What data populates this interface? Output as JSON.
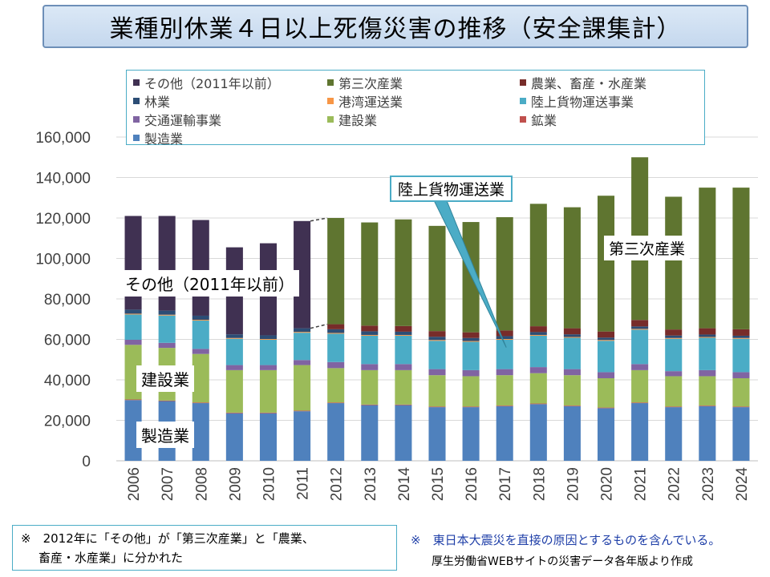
{
  "title": "業種別休業４日以上死傷災害の推移（安全課集計）",
  "chart_data": {
    "type": "bar",
    "stacked": true,
    "title": "業種別休業４日以上死傷災害の推移（安全課集計）",
    "xlabel": "",
    "ylabel": "",
    "ylim": [
      0,
      160000
    ],
    "yticks": [
      0,
      20000,
      40000,
      60000,
      80000,
      100000,
      120000,
      140000,
      160000
    ],
    "ytick_labels": [
      "0",
      "20,000",
      "40,000",
      "60,000",
      "80,000",
      "100,000",
      "120,000",
      "140,000",
      "160,000"
    ],
    "grid": true,
    "legend_position": "top",
    "categories": [
      "2006",
      "2007",
      "2008",
      "2009",
      "2010",
      "2011",
      "2012",
      "2013",
      "2014",
      "2015",
      "2016",
      "2017",
      "2018",
      "2019",
      "2020",
      "2021",
      "2022",
      "2023",
      "2024"
    ],
    "series": [
      {
        "name": "製造業",
        "color": "#4f81bd",
        "values": [
          30000,
          29500,
          28500,
          23500,
          23500,
          24500,
          28500,
          27500,
          27500,
          26500,
          26500,
          27000,
          28000,
          27000,
          26000,
          28500,
          26500,
          27000,
          26500
        ]
      },
      {
        "name": "鉱業",
        "color": "#c0504d",
        "values": [
          300,
          300,
          300,
          300,
          300,
          300,
          300,
          300,
          300,
          300,
          300,
          300,
          300,
          300,
          300,
          300,
          300,
          300,
          300
        ]
      },
      {
        "name": "建設業",
        "color": "#9bbb59",
        "values": [
          27000,
          26000,
          24000,
          21000,
          21000,
          22500,
          17000,
          17000,
          17000,
          15500,
          15000,
          15000,
          15000,
          15000,
          14500,
          16000,
          15000,
          14500,
          14000
        ]
      },
      {
        "name": "交通運輸事業",
        "color": "#8064a2",
        "values": [
          2500,
          2500,
          2500,
          2500,
          2500,
          2500,
          3000,
          3000,
          3000,
          3000,
          3000,
          3000,
          3000,
          3000,
          3000,
          3000,
          2500,
          3000,
          3000
        ]
      },
      {
        "name": "陸上貨物運送事業",
        "color": "#4bacc6",
        "values": [
          12500,
          13500,
          14000,
          13000,
          12500,
          13500,
          14000,
          14000,
          14000,
          14000,
          14000,
          14500,
          15500,
          15500,
          15500,
          17000,
          16000,
          16000,
          16500
        ]
      },
      {
        "name": "港湾運送業",
        "color": "#f79646",
        "values": [
          400,
          400,
          400,
          400,
          400,
          400,
          400,
          400,
          400,
          400,
          400,
          400,
          400,
          400,
          400,
          400,
          400,
          400,
          400
        ]
      },
      {
        "name": "林業",
        "color": "#2c4d75",
        "values": [
          2000,
          2000,
          2000,
          1800,
          1800,
          1800,
          1800,
          1800,
          1600,
          1600,
          1500,
          1400,
          1400,
          1300,
          1200,
          1200,
          1200,
          1200,
          1100
        ]
      },
      {
        "name": "農業、畜産・水産業",
        "color": "#772c2a",
        "values": [
          0,
          0,
          0,
          0,
          0,
          0,
          2500,
          2800,
          2800,
          2800,
          2800,
          2800,
          2900,
          3000,
          3000,
          3200,
          3000,
          3100,
          3200
        ]
      },
      {
        "name": "第三次産業",
        "color": "#5f7530",
        "values": [
          0,
          0,
          0,
          0,
          0,
          0,
          52500,
          51000,
          52700,
          52000,
          54500,
          56000,
          60500,
          59800,
          67100,
          80400,
          65600,
          69500,
          70000
        ]
      },
      {
        "name": "その他（2011年以前）",
        "color": "#403152",
        "values": [
          46300,
          46800,
          47300,
          43000,
          45500,
          53000,
          0,
          0,
          0,
          0,
          0,
          0,
          0,
          0,
          0,
          0,
          0,
          0,
          0
        ]
      }
    ],
    "annotations": [
      {
        "text": "陸上貨物運送業",
        "target": "陸上貨物運送事業"
      },
      {
        "text": "第三次産業",
        "target": "第三次産業"
      },
      {
        "text": "その他（2011年以前）",
        "target": "その他（2011年以前）"
      },
      {
        "text": "建設業",
        "target": "建設業"
      },
      {
        "text": "製造業",
        "target": "製造業"
      }
    ]
  },
  "legend_order": [
    "その他（2011年以前）",
    "第三次産業",
    "農業、畜産・水産業",
    "林業",
    "港湾運送業",
    "陸上貨物運送事業",
    "交通運輸事業",
    "建設業",
    "鉱業",
    "製造業"
  ],
  "legend_labels": [
    "その他（2011年以前）",
    "第三次産業",
    "農業、畜産・水産業",
    "林業",
    "港湾運送業",
    "陸上貨物運送事業",
    "交通運輸事業",
    "建設業",
    "鉱業",
    "製造業"
  ],
  "notes": {
    "note1_line1": "※　2012年に「その他」が「第三次産業」と「農業、",
    "note1_line2": "畜産・水産業」に分かれた",
    "note2": "※　東日本大震災を直接の原因とするものを含んでいる。",
    "note3": "厚生労働省WEBサイトの災害データ各年版より作成"
  }
}
